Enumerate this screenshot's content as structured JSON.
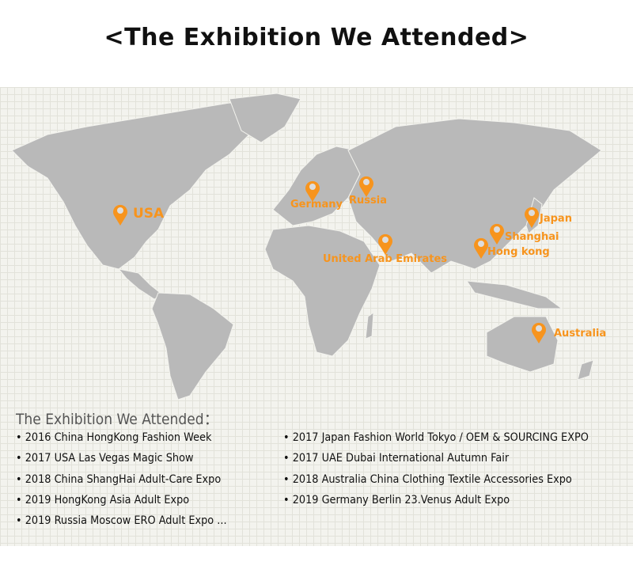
{
  "header": {
    "title": "<The Exhibition We Attended>"
  },
  "map": {
    "accent_color": "#f7941d",
    "land_color": "#b9b9b9",
    "markers": [
      {
        "label": "USA",
        "icon": "map-pin-icon"
      },
      {
        "label": "Germany",
        "icon": "map-pin-icon"
      },
      {
        "label": "Russia",
        "icon": "map-pin-icon"
      },
      {
        "label": "United Arab Emirates",
        "icon": "map-pin-icon"
      },
      {
        "label": "Hong kong",
        "icon": "map-pin-icon"
      },
      {
        "label": "Shanghai",
        "icon": "map-pin-icon"
      },
      {
        "label": "Japan",
        "icon": "map-pin-icon"
      },
      {
        "label": "Australia",
        "icon": "map-pin-icon"
      }
    ]
  },
  "list": {
    "heading": "The Exhibition We Attended：",
    "left": [
      "• 2016 China HongKong Fashion Week",
      "• 2017 USA Las Vegas Magic Show",
      "• 2018 China ShangHai Adult-Care Expo",
      "• 2019 HongKong Asia Adult Expo",
      "• 2019 Russia Moscow ERO Adult Expo ..."
    ],
    "right": [
      "• 2017 Japan Fashion World Tokyo / OEM & SOURCING EXPO",
      "• 2017 UAE Dubai International Autumn Fair",
      "• 2018 Australia China Clothing Textile Accessories Expo",
      "• 2019 Germany Berlin 23.Venus Adult Expo"
    ]
  }
}
